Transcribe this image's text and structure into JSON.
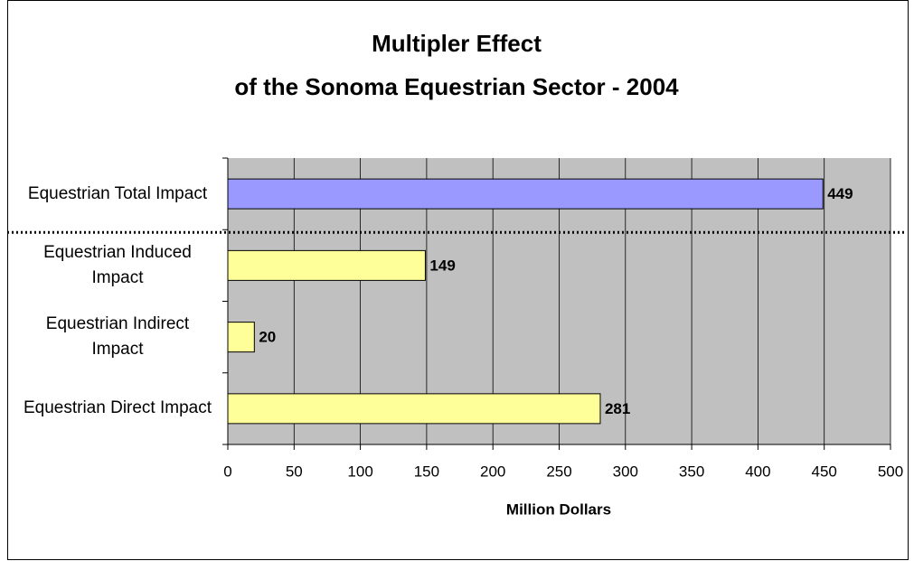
{
  "chart_data": {
    "type": "bar",
    "orientation": "horizontal",
    "title": [
      "Multipler Effect",
      "of the Sonoma Equestrian Sector - 2004"
    ],
    "xlabel": "Million Dollars",
    "categories": [
      "Equestrian Total Impact",
      "Equestrian Induced Impact",
      "Equestrian Indirect Impact",
      "Equestrian Direct Impact"
    ],
    "values": [
      449,
      149,
      20,
      281
    ],
    "colors": [
      "#9999ff",
      "#ffff99",
      "#ffff99",
      "#ffff99"
    ],
    "xlim": [
      0,
      500
    ],
    "xticks": [
      0,
      50,
      100,
      150,
      200,
      250,
      300,
      350,
      400,
      450,
      500
    ],
    "grid": true
  }
}
